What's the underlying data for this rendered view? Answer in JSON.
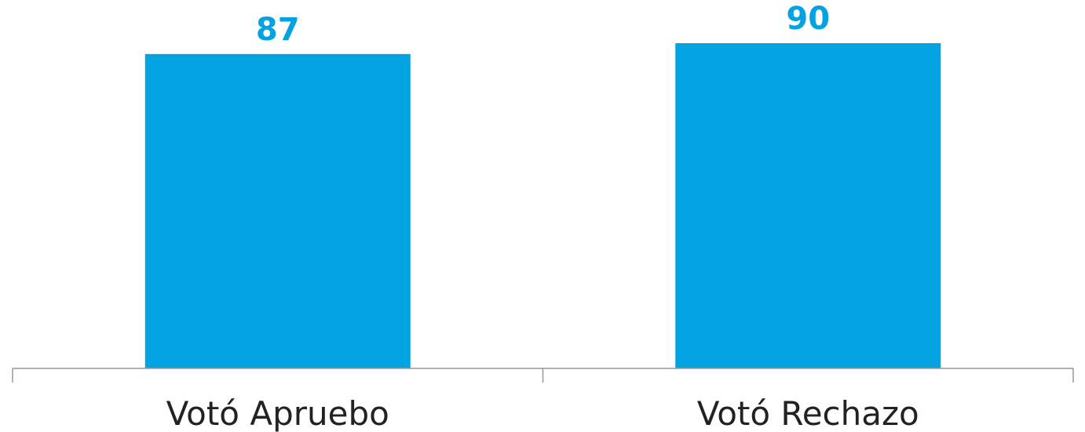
{
  "chart_data": {
    "type": "bar",
    "categories": [
      "Votó Apruebo",
      "Votó Rechazo"
    ],
    "values": [
      87,
      90
    ],
    "data_labels": [
      "87",
      "90"
    ],
    "title": "",
    "xlabel": "",
    "ylabel": "",
    "ylim": [
      0,
      90
    ],
    "grid": false,
    "legend": "none",
    "colors": {
      "bar": "#03A2E0",
      "value_label": "#03A2E0",
      "axis": "#999999"
    }
  }
}
